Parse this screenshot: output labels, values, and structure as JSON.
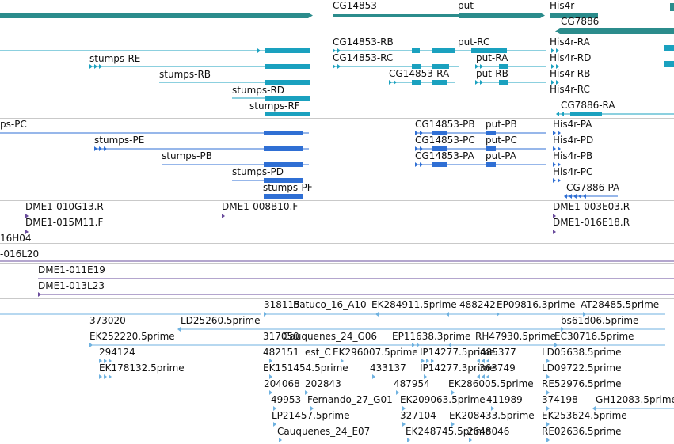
{
  "browser": {
    "name": "genome-browser-feature-panel",
    "colors": {
      "gene": "#2b8c8c",
      "transcript": "#1aa1bf",
      "protein": "#2f6fd4",
      "bac_end": "#6a4c9c",
      "est": "#6fb2e0"
    },
    "tracks": {
      "genes": {
        "features": [
          {
            "name": "CG14853",
            "label": "CG14853"
          },
          {
            "name": "put",
            "label": "put"
          },
          {
            "name": "His4r",
            "label": "His4r"
          },
          {
            "name": "CG7886",
            "label": "CG7886"
          }
        ]
      },
      "transcripts": {
        "labels": [
          "stumps-RE",
          "stumps-RB",
          "stumps-RD",
          "stumps-RF",
          "CG14853-RB",
          "CG14853-RC",
          "CG14853-RA",
          "put-RC",
          "put-RA",
          "put-RB",
          "His4r-RA",
          "His4r-RD",
          "His4r-RB",
          "His4r-RC",
          "CG7886-RA"
        ]
      },
      "proteins": {
        "labels": [
          "ps-PC",
          "stumps-PE",
          "stumps-PB",
          "stumps-PD",
          "stumps-PF",
          "CG14853-PB",
          "CG14853-PC",
          "CG14853-PA",
          "put-PB",
          "put-PC",
          "put-PA",
          "His4r-PA",
          "His4r-PD",
          "His4r-PB",
          "His4r-PC",
          "CG7886-PA"
        ]
      },
      "bac_ends": {
        "labels": [
          "DME1-010G13.R",
          "DME1-015M11.F",
          "16H04",
          "DME1-008B10.F",
          "DME1-003E03.R",
          "DME1-016E18.R"
        ]
      },
      "bac_clones": {
        "labels": [
          "-016L20",
          "DME1-011E19",
          "DME1-013L23"
        ]
      },
      "ests": {
        "labels": [
          "318115",
          "Batuco_16_A10",
          "EK284911.5prime",
          "488242",
          "EP09816.3prime",
          "AT28485.5prime",
          "373020",
          "LD25260.5prime",
          "bs61d06.5prime",
          "EK252220.5prime",
          "317050",
          "Cauquenes_24_G06",
          "EP11638.3prime",
          "RH47930.5prime",
          "EC30716.5prime",
          "294124",
          "482151",
          "est_C",
          "EK296007.5prime",
          "IP14277.5prime",
          "485377",
          "LD05638.5prime",
          "EK178132.5prime",
          "EK151454.5prime",
          "433137",
          "IP14277.3prime",
          "363749",
          "LD09722.5prime",
          "204068",
          "202843",
          "487954",
          "EK286005.5prime",
          "RE52976.5prime",
          "49953",
          "Fernando_27_G01",
          "EK209063.5prime",
          "411989",
          "374198",
          "GH12083.5prime",
          "LP21457.5prime",
          "327104",
          "EK208433.5prime",
          "EK253624.5prime",
          "Cauquenes_24_E07",
          "EK248745.5prime",
          "2648046",
          "RE02636.5prime"
        ]
      }
    }
  }
}
